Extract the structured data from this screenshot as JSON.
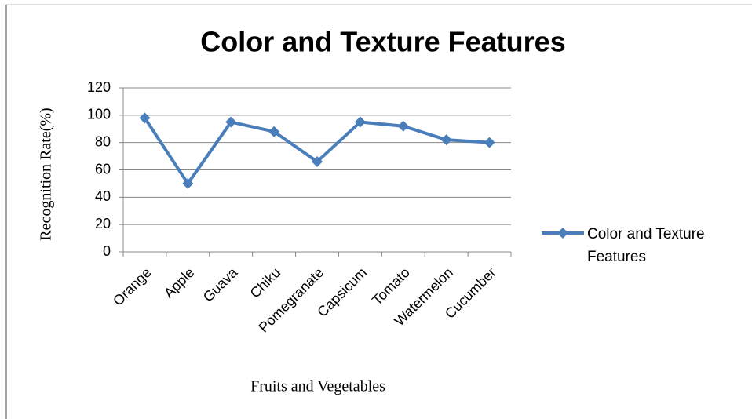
{
  "chart_data": {
    "type": "line",
    "title": "Color and Texture Features",
    "xlabel": "Fruits and Vegetables",
    "ylabel": "Recognition Rate(%)",
    "categories": [
      "Orange",
      "Apple",
      "Guava",
      "Chiku",
      "Pomegranate",
      "Capsicum",
      "Tomato",
      "Watermelon",
      "Cucumber"
    ],
    "series": [
      {
        "name": "Color and Texture Features",
        "color": "#4a7ebb",
        "values": [
          98,
          50,
          95,
          88,
          66,
          95,
          92,
          82,
          80
        ]
      }
    ],
    "ylim": [
      0,
      120
    ],
    "yticks": [
      0,
      20,
      40,
      60,
      80,
      100,
      120
    ],
    "grid": true,
    "legend": "right"
  }
}
